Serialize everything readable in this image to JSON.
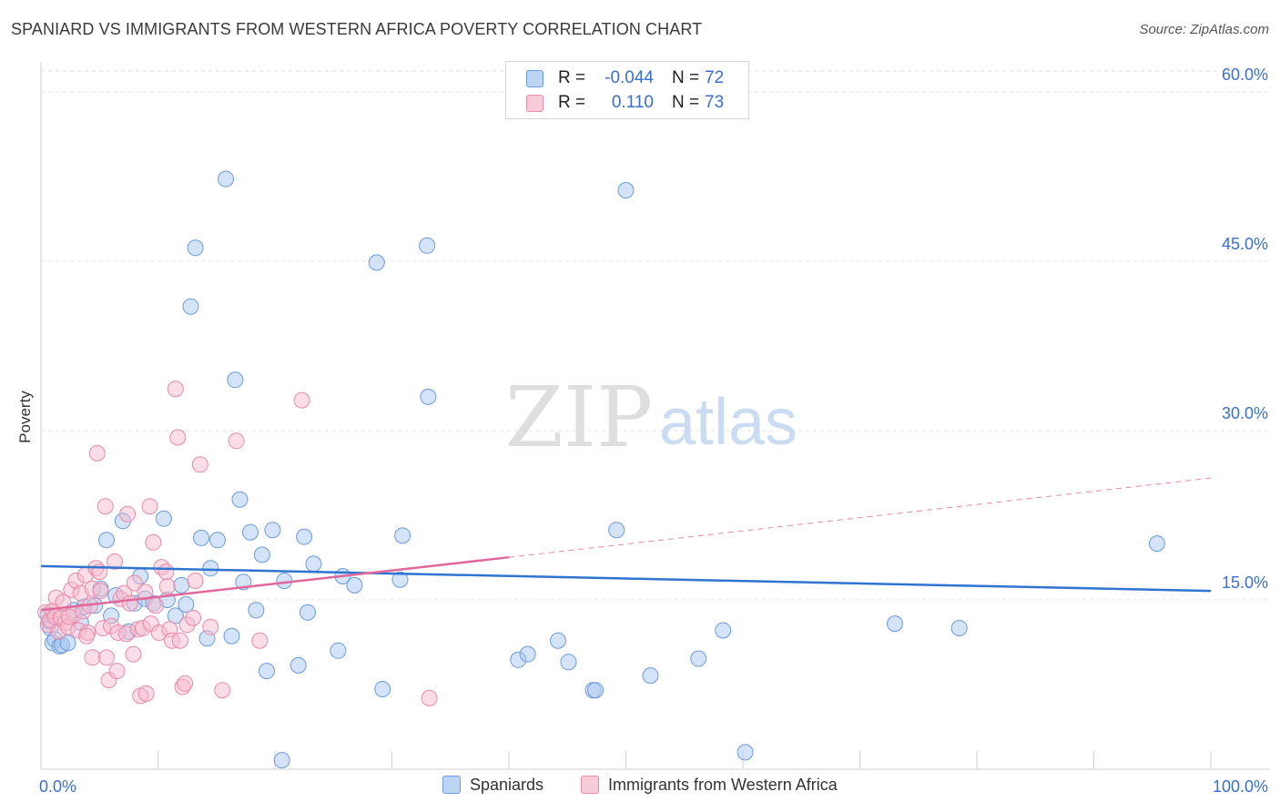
{
  "header": {
    "title": "SPANIARD VS IMMIGRANTS FROM WESTERN AFRICA POVERTY CORRELATION CHART",
    "source": "Source: ZipAtlas.com"
  },
  "watermark": {
    "zip": "ZIP",
    "atlas": "atlas"
  },
  "colors": {
    "blue_fill": "#a9c8f0",
    "blue_stroke": "#6a9be0",
    "blue_line": "#2f74d0",
    "pink_fill": "#f6bccd",
    "pink_stroke": "#e98aa8",
    "pink_line": "#e0689a",
    "grid": "#e3e3e3",
    "axis_label": "#3a6fcf"
  },
  "legend": {
    "rows": [
      {
        "label": "R =",
        "r": "-0.044",
        "n_label": "N =",
        "n": "72",
        "color": "blue"
      },
      {
        "label": "R =",
        "r": "0.110",
        "n_label": "N =",
        "n": "73",
        "color": "pink"
      }
    ]
  },
  "bottom_legend": {
    "series1": "Spaniards",
    "series2": "Immigrants from Western Africa"
  },
  "chart_data": {
    "type": "scatter",
    "title": "SPANIARD VS IMMIGRANTS FROM WESTERN AFRICA POVERTY CORRELATION CHART",
    "xlabel": "",
    "ylabel": "Poverty",
    "xlim": [
      0,
      100
    ],
    "ylim": [
      0,
      63
    ],
    "x_tick_labels": {
      "min": "0.0%",
      "max": "100.0%"
    },
    "y_ticks": [
      15,
      30,
      45,
      60
    ],
    "y_tick_labels": [
      "15.0%",
      "30.0%",
      "45.0%",
      "60.0%"
    ],
    "grid": true,
    "series": [
      {
        "name": "Spaniards",
        "color": "blue",
        "r": -0.044,
        "n": 72,
        "trend": {
          "x0": 0,
          "y0": 18.0,
          "x1": 100,
          "y1": 15.8,
          "dashed_from": null
        },
        "points": [
          [
            0.6,
            13.7
          ],
          [
            0.7,
            13.1
          ],
          [
            0.8,
            12.5
          ],
          [
            1.0,
            11.2
          ],
          [
            1.2,
            11.5
          ],
          [
            1.6,
            10.9
          ],
          [
            1.8,
            11.0
          ],
          [
            2.3,
            11.2
          ],
          [
            2.8,
            14.1
          ],
          [
            3.4,
            13.0
          ],
          [
            3.7,
            14.4
          ],
          [
            4.6,
            14.5
          ],
          [
            5.1,
            16.0
          ],
          [
            5.6,
            20.3
          ],
          [
            6.0,
            13.6
          ],
          [
            6.4,
            15.4
          ],
          [
            7.0,
            22.0
          ],
          [
            7.5,
            12.2
          ],
          [
            8.0,
            14.7
          ],
          [
            8.5,
            17.1
          ],
          [
            8.9,
            15.1
          ],
          [
            9.6,
            14.7
          ],
          [
            10.5,
            22.2
          ],
          [
            10.8,
            15.0
          ],
          [
            11.5,
            13.6
          ],
          [
            12.0,
            16.3
          ],
          [
            12.4,
            14.6
          ],
          [
            12.8,
            41.0
          ],
          [
            13.2,
            46.2
          ],
          [
            13.7,
            20.5
          ],
          [
            14.2,
            11.6
          ],
          [
            14.5,
            17.8
          ],
          [
            15.1,
            20.3
          ],
          [
            15.8,
            52.3
          ],
          [
            16.3,
            11.8
          ],
          [
            16.6,
            34.5
          ],
          [
            17.0,
            23.9
          ],
          [
            17.3,
            16.6
          ],
          [
            17.9,
            21.0
          ],
          [
            18.4,
            14.1
          ],
          [
            18.9,
            19.0
          ],
          [
            19.3,
            8.7
          ],
          [
            19.8,
            21.2
          ],
          [
            20.6,
            0.8
          ],
          [
            20.8,
            16.7
          ],
          [
            22.0,
            9.2
          ],
          [
            22.5,
            20.6
          ],
          [
            22.8,
            13.9
          ],
          [
            23.3,
            18.2
          ],
          [
            25.4,
            10.5
          ],
          [
            25.8,
            17.1
          ],
          [
            26.8,
            16.3
          ],
          [
            28.7,
            44.9
          ],
          [
            29.2,
            7.1
          ],
          [
            30.7,
            16.8
          ],
          [
            30.9,
            20.7
          ],
          [
            33.0,
            46.4
          ],
          [
            33.1,
            33.0
          ],
          [
            40.8,
            9.7
          ],
          [
            41.6,
            10.2
          ],
          [
            44.2,
            11.4
          ],
          [
            45.1,
            9.5
          ],
          [
            47.2,
            7.0
          ],
          [
            47.4,
            7.0
          ],
          [
            49.2,
            21.2
          ],
          [
            50.0,
            51.3
          ],
          [
            52.1,
            8.3
          ],
          [
            56.2,
            9.8
          ],
          [
            58.3,
            12.3
          ],
          [
            60.2,
            1.5
          ],
          [
            73.0,
            12.9
          ],
          [
            78.5,
            12.5
          ],
          [
            95.4,
            20.0
          ]
        ]
      },
      {
        "name": "Immigrants from Western Africa",
        "color": "pink",
        "r": 0.11,
        "n": 73,
        "trend": {
          "x0": 0,
          "y0": 14.1,
          "x1": 100,
          "y1": 25.8,
          "dashed_from": 40
        },
        "points": [
          [
            0.4,
            13.9
          ],
          [
            0.6,
            12.8
          ],
          [
            0.8,
            13.2
          ],
          [
            1.0,
            14.0
          ],
          [
            1.2,
            13.5
          ],
          [
            1.3,
            15.2
          ],
          [
            1.5,
            12.2
          ],
          [
            1.7,
            13.4
          ],
          [
            1.9,
            14.8
          ],
          [
            2.1,
            13.0
          ],
          [
            2.3,
            12.6
          ],
          [
            2.6,
            15.9
          ],
          [
            2.8,
            13.7
          ],
          [
            3.0,
            16.7
          ],
          [
            3.2,
            12.3
          ],
          [
            3.4,
            15.6
          ],
          [
            3.6,
            14.0
          ],
          [
            3.8,
            17.2
          ],
          [
            4.0,
            12.1
          ],
          [
            4.2,
            14.5
          ],
          [
            4.4,
            16.0
          ],
          [
            4.4,
            9.9
          ],
          [
            4.7,
            17.8
          ],
          [
            4.8,
            28.0
          ],
          [
            5.0,
            17.5
          ],
          [
            5.3,
            12.5
          ],
          [
            5.5,
            23.3
          ],
          [
            5.6,
            9.9
          ],
          [
            5.8,
            7.9
          ],
          [
            6.0,
            12.7
          ],
          [
            6.3,
            18.4
          ],
          [
            6.5,
            8.7
          ],
          [
            6.6,
            12.1
          ],
          [
            6.8,
            15.1
          ],
          [
            7.1,
            15.6
          ],
          [
            7.3,
            12.0
          ],
          [
            7.4,
            22.6
          ],
          [
            7.6,
            14.7
          ],
          [
            7.9,
            10.2
          ],
          [
            8.0,
            16.5
          ],
          [
            8.3,
            12.4
          ],
          [
            8.5,
            6.5
          ],
          [
            8.7,
            12.5
          ],
          [
            8.9,
            15.7
          ],
          [
            9.0,
            6.7
          ],
          [
            9.3,
            23.3
          ],
          [
            9.4,
            12.9
          ],
          [
            9.6,
            20.1
          ],
          [
            9.8,
            14.5
          ],
          [
            10.1,
            12.1
          ],
          [
            10.3,
            17.9
          ],
          [
            10.7,
            17.5
          ],
          [
            10.8,
            16.2
          ],
          [
            11.0,
            12.4
          ],
          [
            11.2,
            11.4
          ],
          [
            11.5,
            33.7
          ],
          [
            11.7,
            29.4
          ],
          [
            11.9,
            11.4
          ],
          [
            12.1,
            7.3
          ],
          [
            12.3,
            7.6
          ],
          [
            12.5,
            12.8
          ],
          [
            13.0,
            13.4
          ],
          [
            13.2,
            16.7
          ],
          [
            13.6,
            27.0
          ],
          [
            14.5,
            12.6
          ],
          [
            15.5,
            7.0
          ],
          [
            16.7,
            29.1
          ],
          [
            18.7,
            11.4
          ],
          [
            22.3,
            32.7
          ],
          [
            33.2,
            6.3
          ],
          [
            5.1,
            15.8
          ],
          [
            3.9,
            11.8
          ],
          [
            2.4,
            13.5
          ]
        ]
      }
    ]
  }
}
